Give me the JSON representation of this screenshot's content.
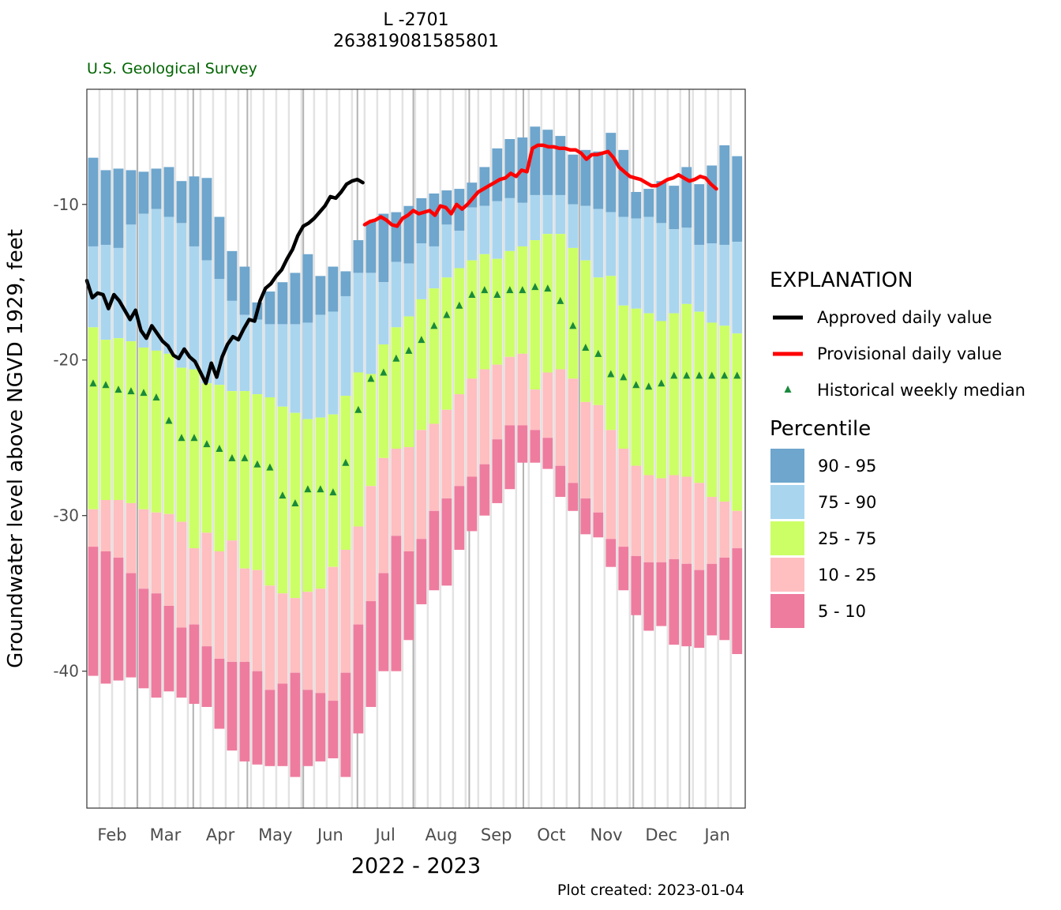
{
  "header": {
    "title": "L -2701",
    "site_id": "263819081585801",
    "agency": "U.S. Geological Survey"
  },
  "footer": {
    "xlabel": "2022 - 2023",
    "created": "Plot created: 2023-01-04"
  },
  "legend": {
    "title": "EXPLANATION",
    "approved": "Approved daily value",
    "provisional": "Provisional daily value",
    "median": "Historical weekly median",
    "percentile_title": "Percentile",
    "bands": [
      {
        "label": "90 - 95",
        "color": "#6ea6cd"
      },
      {
        "label": "75 - 90",
        "color": "#a9d5ef"
      },
      {
        "label": "25 - 75",
        "color": "#ccff66"
      },
      {
        "label": "10 - 25",
        "color": "#ffbec0"
      },
      {
        "label": "5 - 10",
        "color": "#ee7c9f"
      }
    ]
  },
  "colors": {
    "approved": "#000000",
    "provisional": "#ff0000",
    "median": "#1a8a3c",
    "agency": "#006400",
    "grid_major": "#b3b3b3",
    "grid_minor": "#e3e3e3"
  },
  "chart_data": {
    "type": "bar",
    "ylabel": "Groundwater level above NGVD 1929, feet",
    "ylim": [
      -48.8,
      -2.6
    ],
    "yticks": [
      -10,
      -20,
      -30,
      -40
    ],
    "months": [
      "Feb",
      "Mar",
      "Apr",
      "May",
      "Jun",
      "Jul",
      "Aug",
      "Sep",
      "Oct",
      "Nov",
      "Dec",
      "Jan"
    ],
    "week_start_day": [
      0,
      7,
      14,
      21,
      28,
      35,
      42,
      49,
      56,
      63,
      70,
      77,
      84,
      91,
      98,
      105,
      112,
      119,
      126,
      133,
      140,
      147,
      154,
      161,
      168,
      175,
      182,
      189,
      196,
      203,
      210,
      217,
      224,
      231,
      238,
      245,
      252,
      259,
      266,
      273,
      280,
      287,
      294,
      301,
      308,
      315,
      322,
      329,
      336,
      343,
      350,
      357
    ],
    "percentiles": {
      "p95": [
        -7.0,
        -7.8,
        -7.7,
        -7.8,
        -7.9,
        -7.7,
        -7.6,
        -8.5,
        -8.2,
        -8.3,
        -10.8,
        -13.0,
        -14.0,
        -16.3,
        -15.6,
        -15.0,
        -14.4,
        -13.2,
        -14.6,
        -14.0,
        -14.3,
        -12.3,
        -11.1,
        -10.6,
        -10.5,
        -10.1,
        -9.6,
        -9.3,
        -9.1,
        -9.0,
        -8.6,
        -7.6,
        -6.4,
        -5.8,
        -5.7,
        -5.0,
        -5.2,
        -5.6,
        -6.8,
        -6.5,
        -6.6,
        -5.4,
        -6.5,
        -9.2,
        -9.0,
        -8.5,
        -8.8,
        -7.6,
        -8.7,
        -7.5,
        -6.2,
        -6.9
      ],
      "p90": [
        -12.7,
        -12.6,
        -12.8,
        -11.3,
        -10.6,
        -10.3,
        -10.8,
        -11.2,
        -12.7,
        -13.6,
        -14.8,
        -16.2,
        -17.1,
        -17.4,
        -17.7,
        -17.7,
        -17.7,
        -17.6,
        -17.1,
        -16.9,
        -15.9,
        -14.4,
        -14.4,
        -15.0,
        -13.7,
        -13.8,
        -12.5,
        -12.7,
        -11.3,
        -11.7,
        -10.2,
        -10.1,
        -9.8,
        -9.6,
        -9.9,
        -9.4,
        -9.4,
        -9.4,
        -10.0,
        -10.1,
        -10.3,
        -10.5,
        -10.8,
        -10.9,
        -10.8,
        -11.2,
        -11.6,
        -11.5,
        -12.6,
        -12.5,
        -12.6,
        -12.4
      ],
      "p75": [
        -17.9,
        -18.7,
        -18.6,
        -18.8,
        -19.2,
        -19.4,
        -19.6,
        -20.5,
        -20.6,
        -21.5,
        -21.6,
        -22.0,
        -22.0,
        -22.2,
        -22.4,
        -23.0,
        -23.4,
        -23.8,
        -23.7,
        -23.5,
        -22.3,
        -20.8,
        -20.9,
        -19.0,
        -17.9,
        -17.2,
        -16.1,
        -15.4,
        -14.7,
        -14.1,
        -13.6,
        -13.2,
        -13.5,
        -13.0,
        -12.7,
        -12.3,
        -11.9,
        -11.9,
        -12.8,
        -13.6,
        -14.7,
        -14.6,
        -16.5,
        -16.7,
        -17.0,
        -17.5,
        -17.0,
        -16.4,
        -16.9,
        -17.6,
        -17.8,
        -18.3
      ],
      "p25": [
        -29.6,
        -29.0,
        -29.0,
        -29.2,
        -29.6,
        -29.8,
        -29.9,
        -30.4,
        -32.1,
        -31.1,
        -32.3,
        -31.6,
        -33.4,
        -33.5,
        -34.5,
        -35.0,
        -35.3,
        -34.9,
        -34.7,
        -33.3,
        -32.2,
        -30.7,
        -28.1,
        -26.3,
        -25.7,
        -25.6,
        -24.5,
        -24.1,
        -23.2,
        -22.2,
        -21.2,
        -20.6,
        -20.3,
        -19.8,
        -19.6,
        -21.9,
        -20.8,
        -20.6,
        -21.2,
        -22.7,
        -22.9,
        -24.5,
        -25.7,
        -26.8,
        -27.4,
        -27.6,
        -27.4,
        -27.5,
        -27.9,
        -28.8,
        -29.1,
        -29.7
      ],
      "p10": [
        -32.0,
        -32.3,
        -32.7,
        -33.7,
        -34.7,
        -35.0,
        -35.8,
        -37.2,
        -37.0,
        -38.4,
        -39.2,
        -39.4,
        -39.4,
        -40.0,
        -41.2,
        -40.8,
        -40.1,
        -41.2,
        -41.4,
        -41.9,
        -40.1,
        -37.0,
        -35.5,
        -33.7,
        -31.3,
        -32.3,
        -31.5,
        -29.7,
        -28.9,
        -28.1,
        -27.5,
        -26.7,
        -25.1,
        -24.2,
        -24.2,
        -24.5,
        -25.0,
        -26.8,
        -27.9,
        -28.9,
        -29.8,
        -31.5,
        -32.0,
        -32.6,
        -33.0,
        -33.0,
        -32.8,
        -33.1,
        -33.5,
        -33.1,
        -32.7,
        -32.1
      ],
      "p5": [
        -40.3,
        -40.8,
        -40.6,
        -40.4,
        -41.1,
        -41.7,
        -41.3,
        -41.7,
        -42.1,
        -42.3,
        -43.7,
        -45.1,
        -45.8,
        -46.0,
        -46.1,
        -46.1,
        -46.8,
        -46.1,
        -45.8,
        -45.6,
        -46.8,
        -44.0,
        -42.3,
        -40.0,
        -40.0,
        -38.0,
        -35.7,
        -34.8,
        -34.5,
        -32.2,
        -31.0,
        -30.0,
        -29.2,
        -28.3,
        -26.6,
        -26.6,
        -27.0,
        -28.8,
        -29.7,
        -31.2,
        -31.4,
        -33.3,
        -34.8,
        -36.4,
        -37.4,
        -37.1,
        -38.3,
        -38.4,
        -38.5,
        -37.7,
        -38.0,
        -38.9
      ]
    },
    "weekly_median": [
      -21.5,
      -21.6,
      -21.9,
      -22.0,
      -22.1,
      -22.4,
      -23.9,
      -25.0,
      -25.0,
      -25.4,
      -25.7,
      -26.3,
      -26.3,
      -26.7,
      -26.9,
      -28.7,
      -29.2,
      -28.3,
      -28.3,
      -28.5,
      -26.6,
      -23.2,
      -21.2,
      -20.8,
      -19.9,
      -19.4,
      -18.7,
      -17.8,
      -17.1,
      -16.5,
      -15.8,
      -15.5,
      -15.8,
      -15.5,
      -15.5,
      -15.3,
      -15.4,
      -16.2,
      -17.8,
      -19.2,
      -19.6,
      -20.9,
      -21.1,
      -21.6,
      -21.7,
      -21.5,
      -21.0,
      -21.0,
      -21.0,
      -21.0,
      -21.0,
      -21.0
    ],
    "approved_daily": {
      "days": [
        0,
        3,
        6,
        9,
        12,
        15,
        18,
        21,
        24,
        27,
        30,
        33,
        36,
        39,
        42,
        45,
        48,
        51,
        54,
        57,
        60,
        63,
        66,
        69,
        72,
        75,
        78,
        81,
        84,
        87,
        90,
        93,
        96,
        99,
        102,
        105,
        108,
        111,
        114,
        117,
        120,
        123,
        126,
        129,
        132,
        135,
        138,
        141,
        144,
        147,
        150,
        153
      ],
      "values": [
        -14.9,
        -16.0,
        -15.7,
        -15.8,
        -16.7,
        -15.8,
        -16.2,
        -16.8,
        -17.4,
        -16.8,
        -18.1,
        -18.6,
        -17.8,
        -18.3,
        -18.8,
        -19.1,
        -19.7,
        -19.9,
        -19.3,
        -19.8,
        -20.1,
        -20.8,
        -21.5,
        -20.2,
        -21.1,
        -19.8,
        -19.0,
        -18.5,
        -18.7,
        -18.0,
        -17.4,
        -17.5,
        -16.2,
        -15.4,
        -15.1,
        -14.6,
        -14.2,
        -13.5,
        -12.9,
        -12.0,
        -11.4,
        -11.2,
        -10.9,
        -10.5,
        -10.1,
        -9.5,
        -9.6,
        -9.2,
        -8.7,
        -8.5,
        -8.4,
        -8.6
      ]
    },
    "provisional_daily": {
      "days": [
        154,
        157,
        160,
        163,
        166,
        169,
        172,
        175,
        178,
        181,
        184,
        187,
        190,
        193,
        196,
        199,
        202,
        205,
        208,
        211,
        214,
        217,
        220,
        223,
        226,
        229,
        232,
        235,
        238,
        241,
        244,
        247,
        250,
        253,
        256,
        259,
        262,
        265,
        268,
        271,
        274,
        277,
        280,
        283,
        286,
        289,
        292,
        295,
        298,
        301,
        304,
        307,
        310,
        313,
        316,
        319,
        322,
        325,
        328,
        331,
        334,
        337,
        340,
        343,
        346,
        349
      ],
      "values": [
        -11.3,
        -11.1,
        -11.0,
        -10.8,
        -11.0,
        -11.3,
        -11.4,
        -10.9,
        -10.7,
        -10.4,
        -10.6,
        -10.5,
        -10.4,
        -10.7,
        -10.1,
        -10.2,
        -10.6,
        -10.0,
        -10.3,
        -10.0,
        -9.6,
        -9.2,
        -9.0,
        -8.8,
        -8.6,
        -8.4,
        -8.3,
        -8.0,
        -8.2,
        -7.8,
        -7.9,
        -6.4,
        -6.2,
        -6.2,
        -6.3,
        -6.3,
        -6.4,
        -6.4,
        -6.5,
        -6.5,
        -6.7,
        -7.1,
        -6.8,
        -6.8,
        -6.7,
        -6.6,
        -7.0,
        -7.6,
        -7.9,
        -8.2,
        -8.3,
        -8.4,
        -8.6,
        -8.8,
        -8.8,
        -8.6,
        -8.4,
        -8.3,
        -8.1,
        -8.3,
        -8.5,
        -8.4,
        -8.2,
        -8.3,
        -8.7,
        -9.0
      ]
    }
  }
}
